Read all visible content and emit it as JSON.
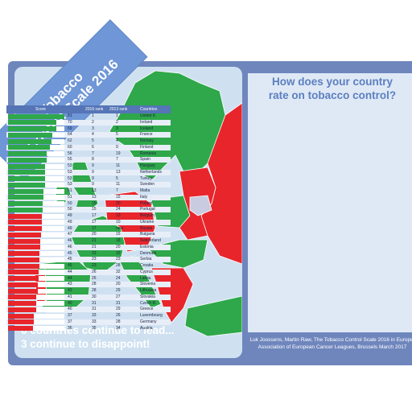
{
  "banner": {
    "line1": "Tobacco",
    "line2": "Control Scale 2016"
  },
  "tagline": {
    "line1": "6 countries continue to lead...",
    "line2": "3 continue to disappoint!"
  },
  "table": {
    "title_line1": "How does your country",
    "title_line2": "rate on tobacco control?",
    "headers": {
      "score": "Score",
      "rank2016": "2016 rank",
      "rank2013": "2013 rank",
      "country": "Countries"
    },
    "rows": [
      {
        "score": "81",
        "r16": "1",
        "r13": "1",
        "country": "United K."
      },
      {
        "score": "70",
        "r16": "2",
        "r13": "2",
        "country": "Ireland"
      },
      {
        "score": "69",
        "r16": "3",
        "r13": "3",
        "country": "Iceland"
      },
      {
        "score": "64",
        "r16": "4",
        "r13": "5",
        "country": "France"
      },
      {
        "score": "62",
        "r16": "5",
        "r13": "4",
        "country": "Norway"
      },
      {
        "score": "60",
        "r16": "6",
        "r13": "9",
        "country": "Finland"
      },
      {
        "score": "56",
        "r16": "7",
        "r13": "19",
        "country": "Romania"
      },
      {
        "score": "55",
        "r16": "8",
        "r13": "7",
        "country": "Spain"
      },
      {
        "score": "53",
        "r16": "9",
        "r13": "11",
        "country": "Hungary"
      },
      {
        "score": "53",
        "r16": "9",
        "r13": "13",
        "country": "Netherlands"
      },
      {
        "score": "53",
        "r16": "9",
        "r13": "5",
        "country": "Turkey"
      },
      {
        "score": "53",
        "r16": "9",
        "r13": "11",
        "country": "Sweden"
      },
      {
        "score": "51",
        "r16": "13",
        "r13": "7",
        "country": "Malta"
      },
      {
        "score": "51",
        "r16": "13",
        "r13": "15",
        "country": "Italy"
      },
      {
        "score": "50",
        "r16": "15",
        "r13": "20",
        "country": "Poland"
      },
      {
        "score": "50",
        "r16": "15",
        "r13": "24",
        "country": "Portugal"
      },
      {
        "score": "49",
        "r16": "17",
        "r13": "13",
        "country": "Belgium"
      },
      {
        "score": "49",
        "r16": "17",
        "r13": "10",
        "country": "Ukraine"
      },
      {
        "score": "49",
        "r16": "17",
        "r13": "new",
        "country": "Russia"
      },
      {
        "score": "47",
        "r16": "20",
        "r13": "15",
        "country": "Bulgaria"
      },
      {
        "score": "46",
        "r16": "21",
        "r13": "18",
        "country": "Switzerland"
      },
      {
        "score": "46",
        "r16": "21",
        "r13": "20",
        "country": "Estonia"
      },
      {
        "score": "45",
        "r16": "23",
        "r13": "15",
        "country": "Denmark"
      },
      {
        "score": "45",
        "r16": "23",
        "r13": "23",
        "country": "Serbia"
      },
      {
        "score": "45",
        "r16": "23",
        "r13": "28",
        "country": "Croatia"
      },
      {
        "score": "44",
        "r16": "26",
        "r13": "32",
        "country": "Cyprus"
      },
      {
        "score": "44",
        "r16": "26",
        "r13": "24",
        "country": "Latvia"
      },
      {
        "score": "43",
        "r16": "28",
        "r13": "20",
        "country": "Slovenia"
      },
      {
        "score": "43",
        "r16": "28",
        "r13": "29",
        "country": "Lithuania"
      },
      {
        "score": "41",
        "r16": "30",
        "r13": "27",
        "country": "Slovakia"
      },
      {
        "score": "40",
        "r16": "31",
        "r13": "31",
        "country": "Czech R."
      },
      {
        "score": "40",
        "r16": "31",
        "r13": "29",
        "country": "Greece"
      },
      {
        "score": "37",
        "r16": "33",
        "r13": "26",
        "country": "Luxembourg"
      },
      {
        "score": "37",
        "r16": "33",
        "r13": "28",
        "country": "Germany"
      },
      {
        "score": "36",
        "r16": "35",
        "r13": "34",
        "country": "Austria"
      }
    ]
  },
  "credit": {
    "line1": "Luk Joossens, Martin Raw, The Tobacco Control Scale 2016 in Europe,",
    "line2": "Association of European Cancer Leagues, Brussels March 2017"
  },
  "colors": {
    "lead": "#2ea84a",
    "disappoint": "#e8252b",
    "frame": "#6f86bd",
    "sea": "#cfe1f1",
    "accent": "#5c7fbf"
  }
}
